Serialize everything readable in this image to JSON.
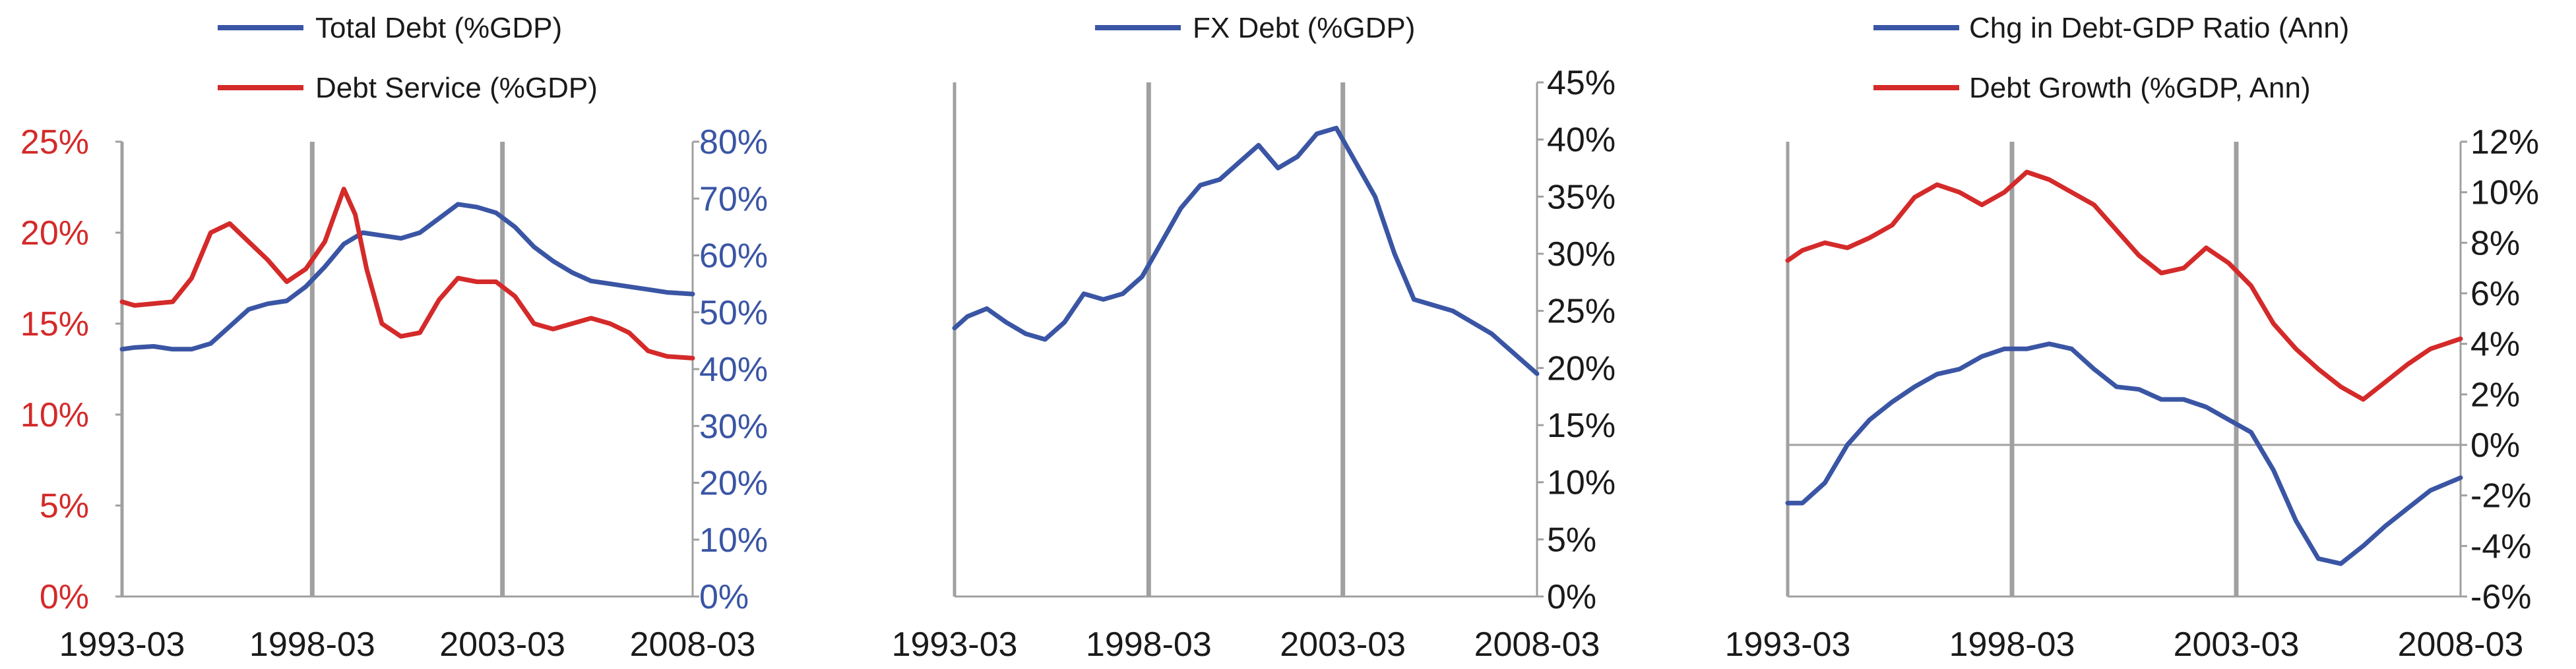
{
  "colors": {
    "blue": "#3a55a4",
    "red": "#d42a2a",
    "axis": "#a0a0a0",
    "text": "#1a1a1a"
  },
  "chart_data": [
    {
      "type": "line",
      "x_ticks": [
        "1993-03",
        "1998-03",
        "2003-03",
        "2008-03"
      ],
      "x_range": [
        1993.17,
        2008.17
      ],
      "y_left": {
        "ticks": [
          "0%",
          "5%",
          "10%",
          "15%",
          "20%",
          "25%"
        ],
        "range": [
          0,
          25
        ],
        "color": "#d42a2a"
      },
      "y_right": {
        "ticks": [
          "0%",
          "10%",
          "20%",
          "30%",
          "40%",
          "50%",
          "60%",
          "70%",
          "80%"
        ],
        "range": [
          0,
          80
        ],
        "color": "#3a55a4"
      },
      "series": [
        {
          "name": "Total Debt (%GDP)",
          "color": "#3a55a4",
          "axis": "right",
          "x": [
            1993.17,
            1993.5,
            1994.0,
            1994.5,
            1995.0,
            1995.5,
            1996.0,
            1996.5,
            1997.0,
            1997.5,
            1998.0,
            1998.5,
            1999.0,
            1999.5,
            2000.0,
            2000.5,
            2001.0,
            2001.5,
            2002.0,
            2002.5,
            2003.0,
            2003.5,
            2004.0,
            2004.5,
            2005.0,
            2005.5,
            2006.0,
            2006.5,
            2007.0,
            2007.5,
            2008.17
          ],
          "y": [
            43.5,
            43.8,
            44.0,
            43.5,
            43.5,
            44.5,
            47.5,
            50.5,
            51.5,
            52,
            54.5,
            58,
            62,
            64,
            63.5,
            63,
            64,
            66.5,
            69,
            68.5,
            67.5,
            65,
            61.5,
            59,
            57,
            55.5,
            55,
            54.5,
            54,
            53.5,
            53.2
          ]
        },
        {
          "name": "Debt Service (%GDP)",
          "color": "#d42a2a",
          "axis": "left",
          "x": [
            1993.17,
            1993.5,
            1994.0,
            1994.5,
            1995.0,
            1995.5,
            1996.0,
            1996.5,
            1997.0,
            1997.5,
            1998.0,
            1998.5,
            1999.0,
            1999.3,
            1999.6,
            2000.0,
            2000.5,
            2001.0,
            2001.5,
            2002.0,
            2002.5,
            2003.0,
            2003.5,
            2004.0,
            2004.5,
            2005.0,
            2005.5,
            2006.0,
            2006.5,
            2007.0,
            2007.5,
            2008.17
          ],
          "y": [
            16.2,
            16.0,
            16.1,
            16.2,
            17.5,
            20.0,
            20.5,
            19.5,
            18.5,
            17.3,
            18.0,
            19.5,
            22.4,
            21.0,
            18.0,
            15.0,
            14.3,
            14.5,
            16.3,
            17.5,
            17.3,
            17.3,
            16.5,
            15.0,
            14.7,
            15.0,
            15.3,
            15.0,
            14.5,
            13.5,
            13.2,
            13.1
          ]
        }
      ]
    },
    {
      "type": "line",
      "x_ticks": [
        "1993-03",
        "1998-03",
        "2003-03",
        "2008-03"
      ],
      "x_range": [
        1993.17,
        2008.17
      ],
      "y_right": {
        "ticks": [
          "0%",
          "5%",
          "10%",
          "15%",
          "20%",
          "25%",
          "30%",
          "35%",
          "40%",
          "45%"
        ],
        "range": [
          0,
          45
        ],
        "color": "#1a1a1a"
      },
      "series": [
        {
          "name": "FX Debt (%GDP)",
          "color": "#3a55a4",
          "axis": "right",
          "x": [
            1993.17,
            1993.5,
            1994.0,
            1994.5,
            1995.0,
            1995.5,
            1996.0,
            1996.5,
            1997.0,
            1997.5,
            1998.0,
            1998.5,
            1999.0,
            1999.5,
            2000.0,
            2000.5,
            2001.0,
            2001.5,
            2002.0,
            2002.5,
            2003.0,
            2003.5,
            2004.0,
            2004.5,
            2005.0,
            2005.5,
            2006.0,
            2006.5,
            2007.0,
            2007.5,
            2008.17
          ],
          "y": [
            23.5,
            24.5,
            25.2,
            24,
            23,
            22.5,
            24,
            26.5,
            26,
            26.5,
            28,
            31,
            34,
            36,
            36.5,
            38,
            39.5,
            37.5,
            38.5,
            40.5,
            41,
            38,
            35,
            30,
            26,
            25.5,
            25,
            24,
            23,
            21.5,
            19.5
          ]
        }
      ]
    },
    {
      "type": "line",
      "x_ticks": [
        "1993-03",
        "1998-03",
        "2003-03",
        "2008-03"
      ],
      "x_range": [
        1993.17,
        2008.17
      ],
      "y_right": {
        "ticks": [
          "-6%",
          "-4%",
          "-2%",
          "0%",
          "2%",
          "4%",
          "6%",
          "8%",
          "10%",
          "12%"
        ],
        "range": [
          -6,
          12
        ],
        "color": "#1a1a1a"
      },
      "series": [
        {
          "name": "Chg in Debt-GDP Ratio (Ann)",
          "color": "#3a55a4",
          "axis": "right",
          "x": [
            1993.17,
            1993.5,
            1994.0,
            1994.5,
            1995.0,
            1995.5,
            1996.0,
            1996.5,
            1997.0,
            1997.5,
            1998.0,
            1998.5,
            1999.0,
            1999.5,
            2000.0,
            2000.5,
            2001.0,
            2001.5,
            2002.0,
            2002.5,
            2003.0,
            2003.5,
            2004.0,
            2004.5,
            2005.0,
            2005.5,
            2006.0,
            2006.5,
            2007.0,
            2007.5,
            2008.17
          ],
          "y": [
            -2.3,
            -2.3,
            -1.5,
            0,
            1.0,
            1.7,
            2.3,
            2.8,
            3.0,
            3.5,
            3.8,
            3.8,
            4.0,
            3.8,
            3.0,
            2.3,
            2.2,
            1.8,
            1.8,
            1.5,
            1.0,
            0.5,
            -1.0,
            -3.0,
            -4.5,
            -4.7,
            -4.0,
            -3.2,
            -2.5,
            -1.8,
            -1.3
          ]
        },
        {
          "name": "Debt Growth (%GDP, Ann)",
          "color": "#d42a2a",
          "axis": "right",
          "x": [
            1993.17,
            1993.5,
            1994.0,
            1994.5,
            1995.0,
            1995.5,
            1996.0,
            1996.5,
            1997.0,
            1997.5,
            1998.0,
            1998.5,
            1999.0,
            1999.5,
            2000.0,
            2000.5,
            2001.0,
            2001.5,
            2002.0,
            2002.5,
            2003.0,
            2003.5,
            2004.0,
            2004.5,
            2005.0,
            2005.5,
            2006.0,
            2006.5,
            2007.0,
            2007.5,
            2008.17
          ],
          "y": [
            7.3,
            7.7,
            8.0,
            7.8,
            8.2,
            8.7,
            9.8,
            10.3,
            10.0,
            9.5,
            10.0,
            10.8,
            10.5,
            10.0,
            9.5,
            8.5,
            7.5,
            6.8,
            7.0,
            7.8,
            7.2,
            6.3,
            4.8,
            3.8,
            3.0,
            2.3,
            1.8,
            2.5,
            3.2,
            3.8,
            4.2
          ]
        }
      ]
    }
  ]
}
